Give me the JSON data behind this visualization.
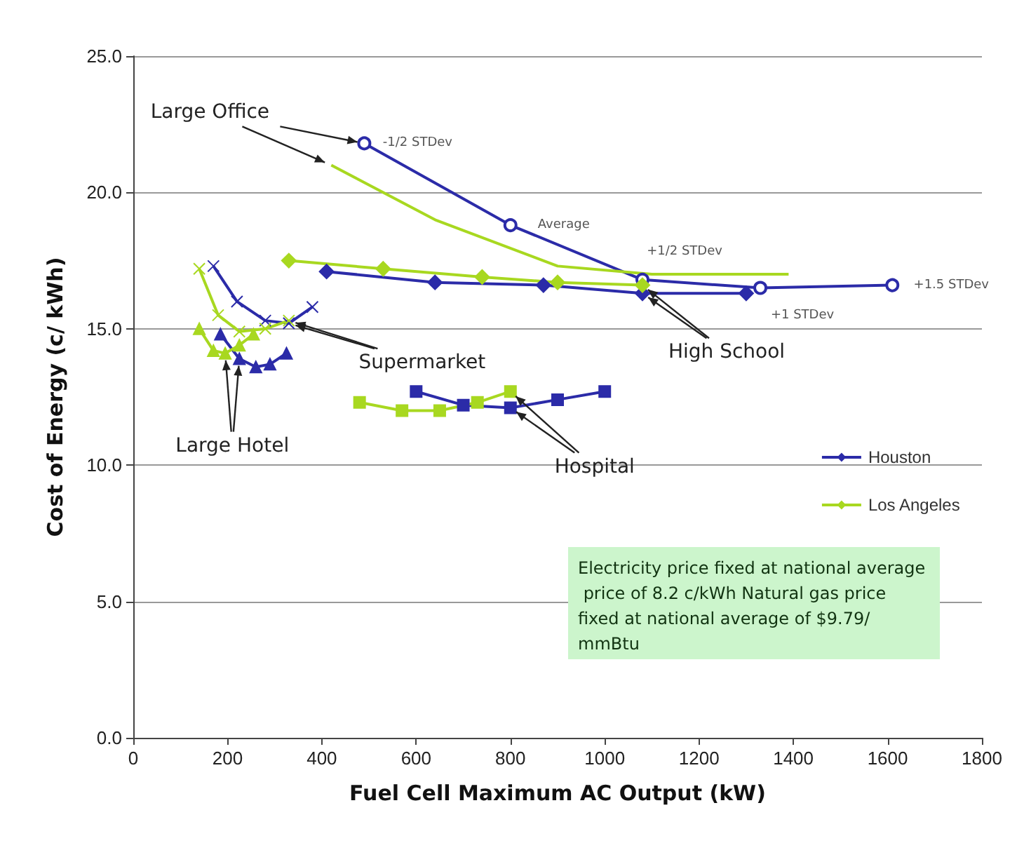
{
  "chart_data": {
    "type": "line",
    "xlabel": "Fuel Cell Maximum AC Output (kW)",
    "ylabel": "Cost of Energy (c/ kWh)",
    "xlim": [
      0,
      1800
    ],
    "xticks": [
      0,
      200,
      400,
      600,
      800,
      1000,
      1200,
      1400,
      1600,
      1800
    ],
    "ylim": [
      0,
      25
    ],
    "yticks": [
      {
        "value": 0,
        "label": "0.0"
      },
      {
        "value": 5,
        "label": "5.0"
      },
      {
        "value": 10,
        "label": "10.0"
      },
      {
        "value": 15,
        "label": "15.0"
      },
      {
        "value": 20,
        "label": "20.0"
      },
      {
        "value": 25,
        "label": "25.0"
      }
    ],
    "grid": "y",
    "legend": "right",
    "series": [
      {
        "name": "Houston",
        "color": "#2b2ba8",
        "marker": "diamond",
        "x": [
          410,
          640,
          870,
          1080,
          1300
        ],
        "values": [
          17.1,
          16.7,
          16.6,
          16.3,
          16.3
        ]
      },
      {
        "name": "Los Angeles",
        "color": "#a8d820",
        "marker": "diamond",
        "x": [
          330,
          530,
          740,
          900,
          1080
        ],
        "values": [
          17.5,
          17.2,
          16.9,
          16.7,
          16.6
        ]
      },
      {
        "color": "#2b2ba8",
        "marker": "circle",
        "x": [
          490,
          800,
          1080,
          1330,
          1610
        ],
        "values": [
          21.8,
          18.8,
          16.8,
          16.5,
          16.6
        ]
      },
      {
        "color": "#a8d820",
        "marker": "none",
        "x": [
          420,
          640,
          900,
          1100,
          1390
        ],
        "values": [
          21.0,
          19.0,
          17.3,
          17.0,
          17.0
        ]
      },
      {
        "color": "#2b2ba8",
        "marker": "cross",
        "x": [
          170,
          220,
          280,
          330,
          380
        ],
        "values": [
          17.3,
          16.0,
          15.3,
          15.2,
          15.8
        ]
      },
      {
        "color": "#a8d820",
        "marker": "cross",
        "x": [
          140,
          180,
          225,
          280,
          330
        ],
        "values": [
          17.2,
          15.5,
          14.9,
          15.0,
          15.3
        ]
      },
      {
        "color": "#2b2ba8",
        "marker": "triangle",
        "x": [
          185,
          225,
          260,
          290,
          325
        ],
        "values": [
          14.8,
          13.9,
          13.6,
          13.7,
          14.1
        ]
      },
      {
        "color": "#a8d820",
        "marker": "triangle",
        "x": [
          140,
          170,
          195,
          225,
          255
        ],
        "values": [
          15.0,
          14.2,
          14.1,
          14.4,
          14.8
        ]
      },
      {
        "color": "#2b2ba8",
        "marker": "square",
        "x": [
          600,
          700,
          800,
          900,
          1000
        ],
        "values": [
          12.7,
          12.2,
          12.1,
          12.4,
          12.7
        ]
      },
      {
        "color": "#a8d820",
        "marker": "square",
        "x": [
          480,
          570,
          650,
          730,
          800
        ],
        "values": [
          12.3,
          12.0,
          12.0,
          12.3,
          12.7
        ]
      }
    ],
    "annotations": [
      {
        "text": "High School",
        "x": 1080,
        "y": 16.3
      },
      {
        "text": "Large Office",
        "x": 490,
        "y": 21.8
      },
      {
        "text": "Supermarket",
        "x": 330,
        "y": 15.2
      },
      {
        "text": "Large Hotel",
        "x": 225,
        "y": 13.9
      },
      {
        "text": "Hospital",
        "x": 800,
        "y": 12.1
      },
      {
        "text": "-1/2 STDev",
        "x": 490,
        "y": 21.8
      },
      {
        "text": "Average",
        "x": 800,
        "y": 18.8
      },
      {
        "text": "+1/2 STDev",
        "x": 1080,
        "y": 16.8
      },
      {
        "text": "+1 STDev",
        "x": 1330,
        "y": 16.5
      },
      {
        "text": "+1.5 STDev",
        "x": 1610,
        "y": 16.6
      },
      "Electricity price fixed at national average price of 8.2 c/kWh Natural gas price fixed at national average of $9.79/mmBtu"
    ]
  }
}
